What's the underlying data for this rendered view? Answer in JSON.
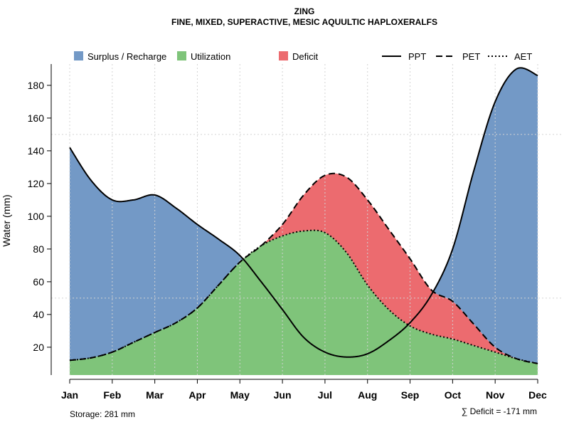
{
  "chart_data": {
    "type": "area",
    "title": "ZING",
    "subtitle": "FINE, MIXED, SUPERACTIVE, MESIC AQUULTIC HAPLOXERALFS",
    "ylabel": "Water (mm)",
    "xlabel": "",
    "categories": [
      "Jan",
      "Feb",
      "Mar",
      "Apr",
      "May",
      "Jun",
      "Jul",
      "Aug",
      "Sep",
      "Oct",
      "Nov",
      "Dec"
    ],
    "yticks": [
      20,
      40,
      60,
      80,
      100,
      120,
      140,
      160,
      180
    ],
    "ylim": [
      3,
      193
    ],
    "grid": true,
    "series": [
      {
        "name": "PPT",
        "style": "solid",
        "x": [
          0,
          0.5,
          1,
          1.5,
          2,
          2.5,
          3,
          3.5,
          4,
          4.5,
          5,
          5.5,
          6,
          6.5,
          7,
          7.5,
          8,
          8.5,
          9,
          9.5,
          10,
          10.5,
          11
        ],
        "values": [
          142,
          122,
          110,
          110,
          113,
          105,
          95,
          86,
          76,
          60,
          43,
          26,
          17,
          14,
          16,
          24,
          35,
          52,
          80,
          128,
          170,
          190,
          186
        ]
      },
      {
        "name": "PET",
        "style": "dashed",
        "x": [
          0,
          0.5,
          1,
          1.5,
          2,
          2.5,
          3,
          3.5,
          4,
          4.5,
          5,
          5.5,
          6,
          6.5,
          7,
          7.5,
          8,
          8.5,
          9,
          9.5,
          10,
          10.5,
          11
        ],
        "values": [
          12,
          13.5,
          17,
          23,
          29,
          35,
          44,
          58,
          72,
          82,
          95,
          113,
          125,
          124,
          110,
          92,
          74,
          55,
          48,
          34,
          20,
          13,
          10
        ]
      },
      {
        "name": "AET",
        "style": "dotted",
        "x": [
          0,
          0.5,
          1,
          1.5,
          2,
          2.5,
          3,
          3.5,
          4,
          4.5,
          5,
          5.5,
          6,
          6.5,
          7,
          7.5,
          8,
          8.5,
          9,
          9.5,
          10,
          10.5,
          11
        ],
        "values": [
          12,
          13.5,
          17,
          23,
          29,
          35,
          44,
          58,
          72,
          82,
          88,
          91,
          90,
          78,
          58,
          43,
          33,
          28,
          25,
          21,
          17,
          13,
          10
        ]
      }
    ],
    "legend": [
      {
        "label": "Surplus / Recharge",
        "kind": "box",
        "color": "#7399c6"
      },
      {
        "label": "Utilization",
        "kind": "box",
        "color": "#7fc47a"
      },
      {
        "label": "Deficit",
        "kind": "box",
        "color": "#ec6b6f"
      },
      {
        "label": "PPT",
        "kind": "line",
        "style": "solid"
      },
      {
        "label": "PET",
        "kind": "line",
        "style": "dashed"
      },
      {
        "label": "AET",
        "kind": "line",
        "style": "dotted"
      }
    ],
    "legend_position": "top",
    "colors": {
      "surplus": "#7399c6",
      "utilization": "#7fc47a",
      "deficit": "#ec6b6f",
      "line": "#000000",
      "grid": "#d3d3d3"
    },
    "annotations": {
      "storage": "Storage: 281 mm",
      "deficit_sum": "∑ Deficit = -171 mm"
    }
  }
}
